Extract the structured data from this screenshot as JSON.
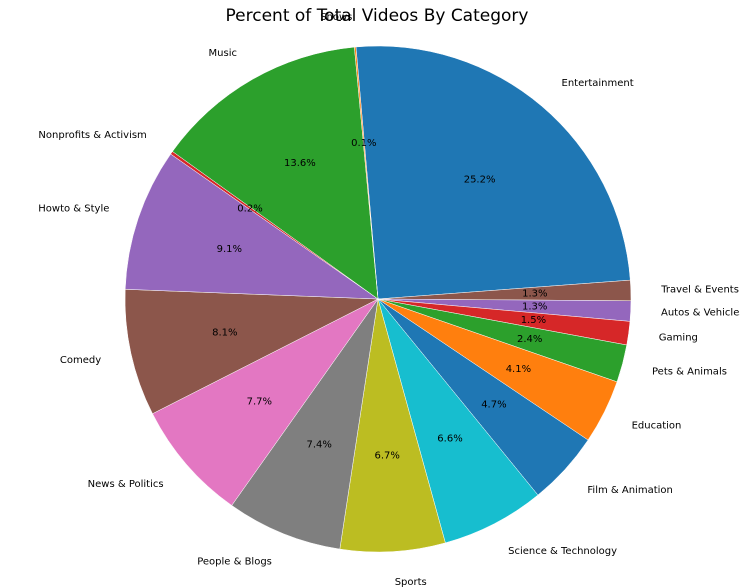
{
  "chart_data": {
    "type": "pie",
    "title": "Percent of Total Videos By Category",
    "start_angle_deg": 95,
    "direction": "clockwise",
    "edge_color": "#ffffff",
    "slices": [
      {
        "label": "Entertainment",
        "value": 25.2,
        "pct_label": "25.2%",
        "color": "#1f77b4"
      },
      {
        "label": "Travel & Events",
        "value": 1.3,
        "pct_label": "1.3%",
        "color": "#8c564b"
      },
      {
        "label": "Autos & Vehicles",
        "value": 1.3,
        "pct_label": "1.3%",
        "color": "#9467bd"
      },
      {
        "label": "Gaming",
        "value": 1.5,
        "pct_label": "1.5%",
        "color": "#d62728"
      },
      {
        "label": "Pets & Animals",
        "value": 2.4,
        "pct_label": "2.4%",
        "color": "#2ca02c"
      },
      {
        "label": "Education",
        "value": 4.1,
        "pct_label": "4.1%",
        "color": "#ff7f0e"
      },
      {
        "label": "Film & Animation",
        "value": 4.7,
        "pct_label": "4.7%",
        "color": "#1f77b4"
      },
      {
        "label": "Science & Technology",
        "value": 6.6,
        "pct_label": "6.6%",
        "color": "#17becf"
      },
      {
        "label": "Sports",
        "value": 6.7,
        "pct_label": "6.7%",
        "color": "#bcbd22"
      },
      {
        "label": "People & Blogs",
        "value": 7.4,
        "pct_label": "7.4%",
        "color": "#7f7f7f"
      },
      {
        "label": "News & Politics",
        "value": 7.7,
        "pct_label": "7.7%",
        "color": "#e377c2"
      },
      {
        "label": "Comedy",
        "value": 8.1,
        "pct_label": "8.1%",
        "color": "#8c564b"
      },
      {
        "label": "Howto & Style",
        "value": 9.1,
        "pct_label": "9.1%",
        "color": "#9467bd"
      },
      {
        "label": "Nonprofits & Activism",
        "value": 0.2,
        "pct_label": "0.2%",
        "color": "#d62728"
      },
      {
        "label": "Music",
        "value": 13.6,
        "pct_label": "13.6%",
        "color": "#2ca02c"
      },
      {
        "label": "Shows",
        "value": 0.1,
        "pct_label": "0.1%",
        "color": "#ff7f0e"
      }
    ]
  }
}
